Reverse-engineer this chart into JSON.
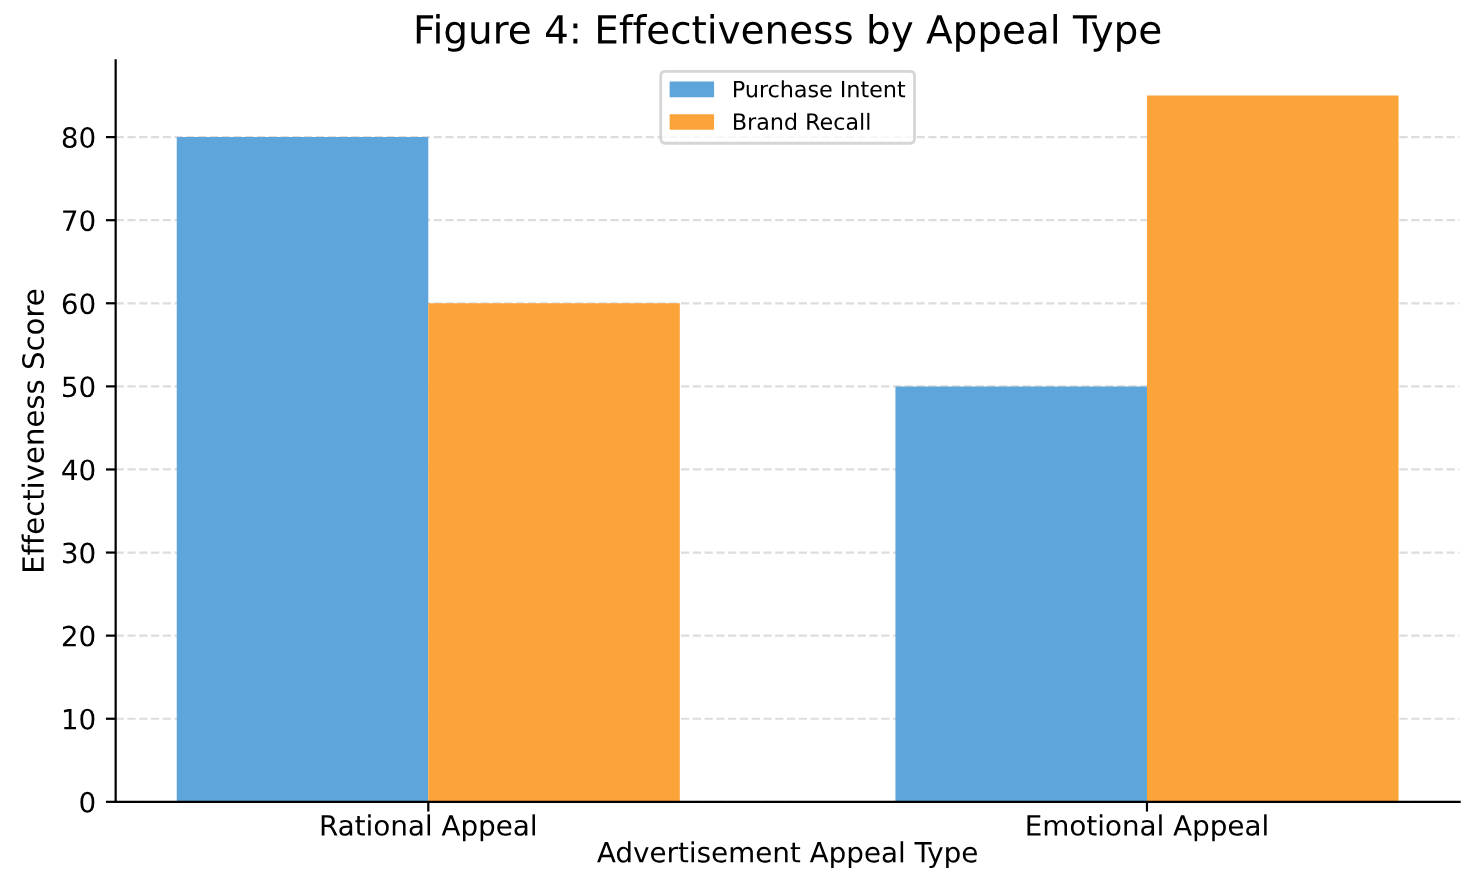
{
  "chart_data": {
    "type": "bar",
    "title": "Figure 4: Effectiveness by Appeal Type",
    "xlabel": "Advertisement Appeal Type",
    "ylabel": "Effectiveness Score",
    "categories": [
      "Rational Appeal",
      "Emotional Appeal"
    ],
    "series": [
      {
        "name": "Purchase Intent",
        "color": "#5da5da",
        "values": [
          80,
          50
        ]
      },
      {
        "name": "Brand Recall",
        "color": "#faa43a",
        "values": [
          60,
          85
        ]
      }
    ],
    "ylim": [
      0,
      89.25
    ],
    "yticks": [
      0,
      10,
      20,
      30,
      40,
      50,
      60,
      70,
      80
    ],
    "grid": "y",
    "legend": "top"
  }
}
